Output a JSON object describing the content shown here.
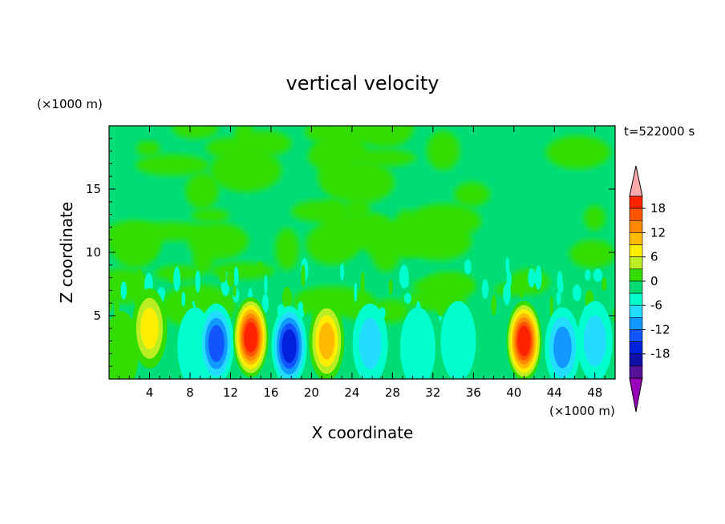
{
  "chart_data": {
    "type": "heatmap",
    "title": "vertical velocity",
    "xlabel": "X coordinate",
    "ylabel": "Z coordinate",
    "x_unit": "(×1000 m)",
    "y_unit": "(×1000 m)",
    "time_label": "t=522000 s",
    "xlim": [
      0,
      50
    ],
    "ylim": [
      0,
      20
    ],
    "x_ticks": [
      4,
      8,
      12,
      16,
      20,
      24,
      28,
      32,
      36,
      40,
      44,
      48
    ],
    "y_ticks": [
      5,
      10,
      15
    ],
    "colorbar": {
      "labels": [
        18,
        12,
        6,
        0,
        -6,
        -12,
        -18
      ],
      "levels": [
        21,
        18,
        15,
        12,
        9,
        6,
        3,
        0,
        -3,
        -6,
        -9,
        -12,
        -15,
        -18,
        -21
      ],
      "colors": [
        "#ffaaaa",
        "#ff2200",
        "#ff5500",
        "#ff8800",
        "#ffbb00",
        "#ffee00",
        "#bbee22",
        "#33dd00",
        "#00dd77",
        "#00ffcc",
        "#22ddff",
        "#1199ff",
        "#1155ff",
        "#0022dd",
        "#1111aa",
        "#551199",
        "#9900bb"
      ]
    },
    "cells": [
      {
        "x": 1.2,
        "z": 2.2,
        "w": 0.2
      },
      {
        "x": 4.0,
        "z": 4.0,
        "w": 0.45
      },
      {
        "x": 8.5,
        "z": 2.5,
        "w": -0.2
      },
      {
        "x": 10.6,
        "z": 2.8,
        "w": -0.6
      },
      {
        "x": 14.0,
        "z": 3.3,
        "w": 1.0
      },
      {
        "x": 17.8,
        "z": 2.6,
        "w": -0.65
      },
      {
        "x": 21.5,
        "z": 3.0,
        "w": 0.5
      },
      {
        "x": 25.8,
        "z": 2.8,
        "w": -0.35
      },
      {
        "x": 30.5,
        "z": 2.5,
        "w": -0.15
      },
      {
        "x": 34.5,
        "z": 3.0,
        "w": -0.05
      },
      {
        "x": 41.0,
        "z": 3.0,
        "w": 0.95
      },
      {
        "x": 44.8,
        "z": 2.5,
        "w": -0.45
      },
      {
        "x": 48.0,
        "z": 3.0,
        "w": -0.3
      }
    ]
  }
}
